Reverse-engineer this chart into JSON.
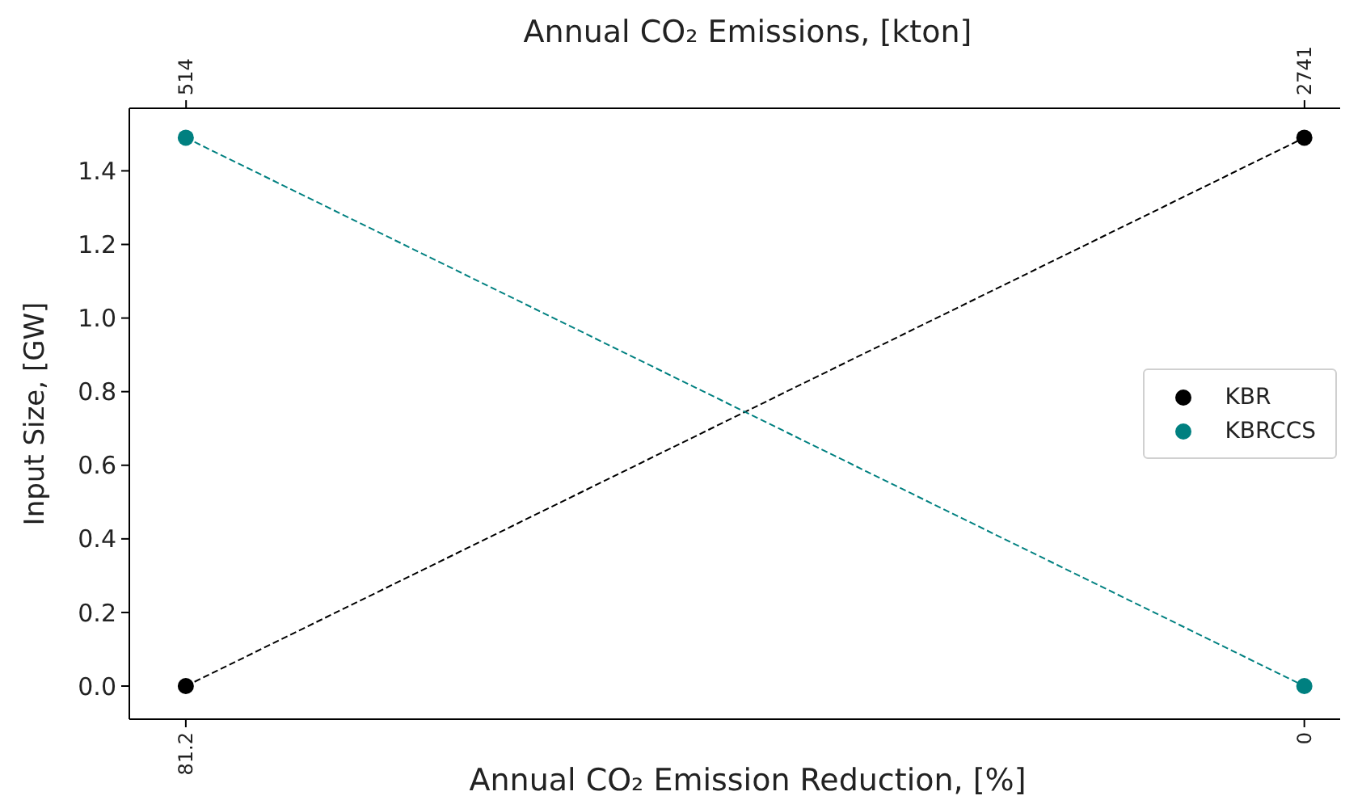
{
  "chart_data": {
    "type": "line",
    "x2label": "Annual CO₂ Emissions, [kton]",
    "xlabel": "Annual CO₂ Emission Reduction, [%]",
    "ylabel": "Input Size, [GW]",
    "x": [
      81.2,
      0
    ],
    "series": [
      {
        "name": "KBR",
        "color": "#000000",
        "values": [
          0,
          1.49
        ]
      },
      {
        "name": "KBRCCS",
        "color": "#008080",
        "values": [
          1.49,
          0
        ]
      }
    ],
    "xlim": [
      85.3,
      -2.6
    ],
    "xticks": [
      81.2,
      0
    ],
    "x2lim": [
      401,
      2812
    ],
    "x2ticks": [
      514,
      2741
    ],
    "ylim": [
      -0.09,
      1.57
    ],
    "yticks": [
      {
        "value": 0,
        "label": "0.0"
      },
      0.2,
      0.4,
      0.6,
      0.8,
      {
        "value": 1,
        "label": "1.0"
      },
      1.2,
      1.4
    ],
    "legend": "right",
    "marker": "circle",
    "line_style": "dashed"
  }
}
